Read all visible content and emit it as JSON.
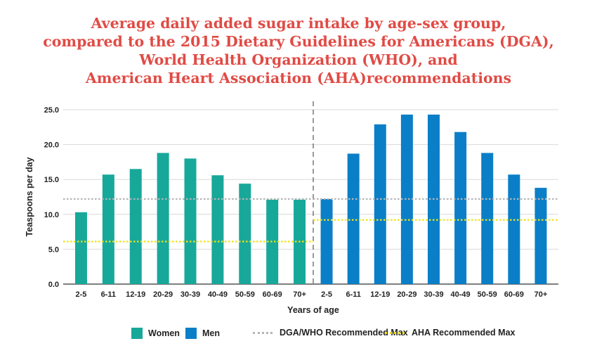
{
  "title_lines": [
    "Average daily added sugar intake by age-sex group,",
    "compared to the 2015 Dietary Guidelines for Americans (DGA),",
    "World Health Organization (WHO), and",
    "American Heart Association (AHA)recommendations"
  ],
  "colors": {
    "title": "#e04b45",
    "women": "#17a89a",
    "men": "#0a7fc8",
    "dga_line": "#b5b5b5",
    "aha_line": "#f0e218"
  },
  "legend": {
    "women": "Women",
    "men": "Men",
    "dga": "DGA/WHO Recommended Max",
    "aha": "AHA Recommended Max"
  },
  "chart_data": {
    "type": "bar",
    "title": "Average daily added sugar intake by age-sex group, compared to the 2015 Dietary Guidelines for Americans (DGA), World Health Organization (WHO), and American Heart Association (AHA)recommendations",
    "xlabel": "Years of age",
    "ylabel": "Teaspoons per day",
    "ylim": [
      0,
      25
    ],
    "yticks": [
      "0.0",
      "5.0",
      "10.0",
      "15.0",
      "20.0",
      "25.0"
    ],
    "grid": "horizontal",
    "legend_position": "bottom",
    "groups": [
      {
        "name": "Women",
        "categories": [
          "2-5",
          "6-11",
          "12-19",
          "20-29",
          "30-39",
          "40-49",
          "50-59",
          "60-69",
          "70+"
        ],
        "values": [
          10.3,
          15.7,
          16.5,
          18.8,
          18.0,
          15.6,
          14.4,
          12.1,
          12.1
        ],
        "dga_who_max": 12.2,
        "aha_max": 6.1
      },
      {
        "name": "Men",
        "categories": [
          "2-5",
          "6-11",
          "12-19",
          "20-29",
          "30-39",
          "40-49",
          "50-59",
          "60-69",
          "70+"
        ],
        "values": [
          12.2,
          18.7,
          22.9,
          24.3,
          24.3,
          21.8,
          18.8,
          15.7,
          13.8
        ],
        "dga_who_max": 12.2,
        "aha_max": 9.2
      }
    ]
  }
}
